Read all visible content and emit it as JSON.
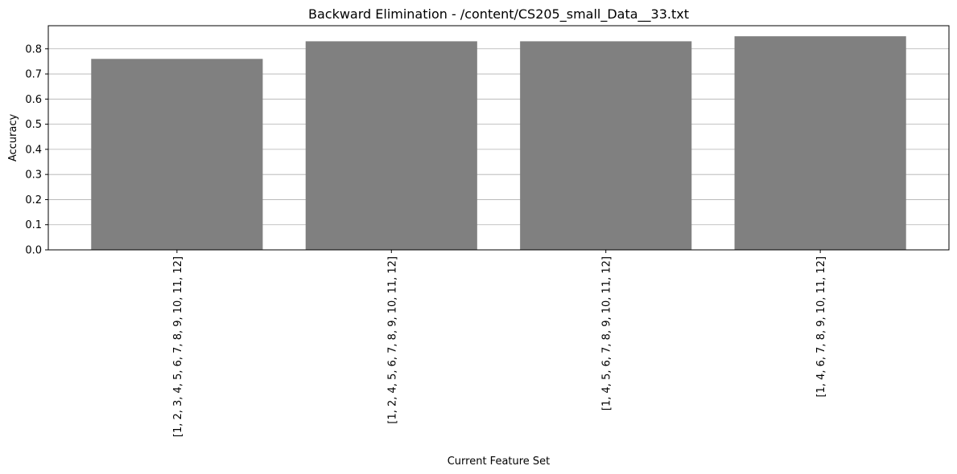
{
  "chart_data": {
    "type": "bar",
    "title": "Backward Elimination - /content/CS205_small_Data__33.txt",
    "xlabel": "Current Feature Set",
    "ylabel": "Accuracy",
    "categories": [
      "[1, 2, 3, 4, 5, 6, 7, 8, 9, 10, 11, 12]",
      "[1, 2, 4, 5, 6, 7, 8, 9, 10, 11, 12]",
      "[1, 4, 5, 6, 7, 8, 9, 10, 11, 12]",
      "[1, 4, 6, 7, 8, 9, 10, 11, 12]"
    ],
    "values": [
      0.76,
      0.83,
      0.83,
      0.85
    ],
    "ylim": [
      0,
      0.892
    ],
    "yticks": [
      0.0,
      0.1,
      0.2,
      0.3,
      0.4,
      0.5,
      0.6,
      0.7,
      0.8
    ],
    "ytick_labels": [
      "0.0",
      "0.1",
      "0.2",
      "0.3",
      "0.4",
      "0.5",
      "0.6",
      "0.7",
      "0.8"
    ],
    "grid": "y-axis",
    "legend": "none",
    "x_tick_rotation": "vertical",
    "colors": {
      "bar": "#808080",
      "grid": "#b0b0b0",
      "axis": "#000000",
      "background": "#ffffff"
    }
  }
}
